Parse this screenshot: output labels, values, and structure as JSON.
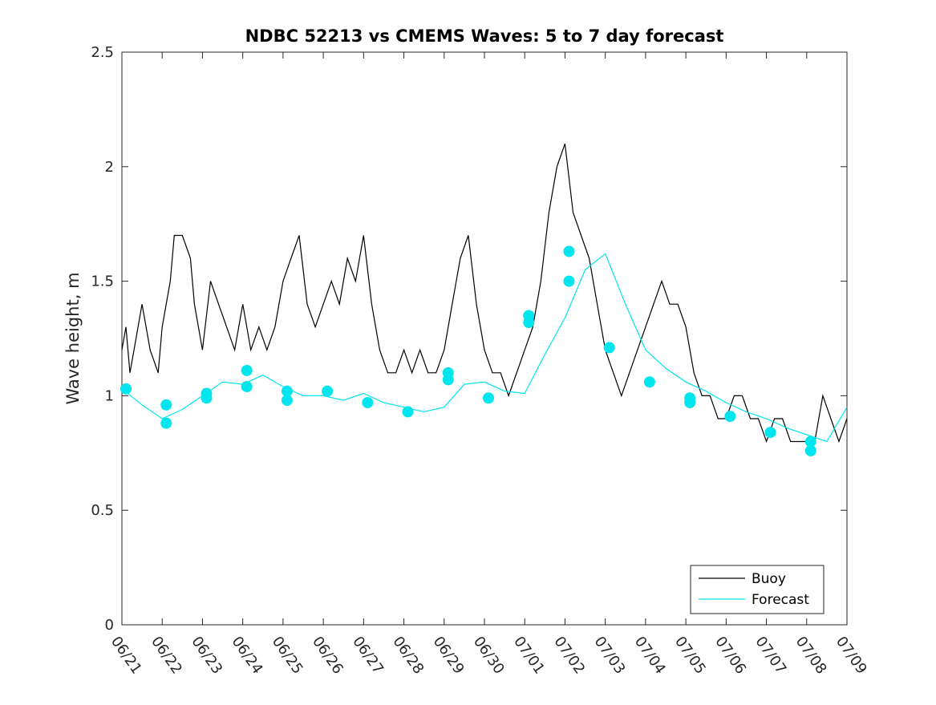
{
  "chart_data": {
    "type": "line",
    "title": "NDBC 52213 vs CMEMS Waves: 5 to 7 day forecast",
    "xlabel": "",
    "ylabel": "Wave height, m",
    "xlim": [
      "06/21",
      "07/09"
    ],
    "ylim": [
      0,
      2.5
    ],
    "y_ticks": [
      "0",
      "0.5",
      "1",
      "1.5",
      "2",
      "2.5"
    ],
    "x_ticks": [
      "06/21",
      "06/22",
      "06/23",
      "06/24",
      "06/25",
      "06/26",
      "06/27",
      "06/28",
      "06/29",
      "06/30",
      "07/01",
      "07/02",
      "07/03",
      "07/04",
      "07/05",
      "07/06",
      "07/07",
      "07/08",
      "07/09"
    ],
    "grid": false,
    "legend_position": "bottom-right",
    "colors": {
      "buoy": "#000000",
      "forecast": "#00e5ee"
    },
    "series": [
      {
        "name": "Buoy",
        "x": [
          0,
          0.1,
          0.2,
          0.3,
          0.5,
          0.7,
          0.9,
          1.0,
          1.2,
          1.3,
          1.5,
          1.7,
          1.8,
          2.0,
          2.2,
          2.4,
          2.6,
          2.8,
          3.0,
          3.2,
          3.4,
          3.6,
          3.8,
          4.0,
          4.2,
          4.4,
          4.6,
          4.8,
          5.0,
          5.2,
          5.4,
          5.6,
          5.8,
          6.0,
          6.2,
          6.4,
          6.6,
          6.8,
          7.0,
          7.2,
          7.4,
          7.6,
          7.8,
          8.0,
          8.2,
          8.4,
          8.6,
          8.8,
          9.0,
          9.2,
          9.4,
          9.6,
          9.8,
          10.0,
          10.2,
          10.4,
          10.6,
          10.8,
          11.0,
          11.2,
          11.4,
          11.6,
          11.8,
          12.0,
          12.2,
          12.4,
          12.6,
          12.8,
          13.0,
          13.2,
          13.4,
          13.6,
          13.8,
          14.0,
          14.2,
          14.4,
          14.6,
          14.8,
          15.0,
          15.2,
          15.4,
          15.6,
          15.8,
          16.0,
          16.2,
          16.4,
          16.6,
          16.8,
          17.0,
          17.2,
          17.4,
          17.6,
          17.8,
          18.0
        ],
        "y": [
          1.2,
          1.3,
          1.1,
          1.2,
          1.4,
          1.2,
          1.1,
          1.3,
          1.5,
          1.7,
          1.7,
          1.6,
          1.4,
          1.2,
          1.5,
          1.4,
          1.3,
          1.2,
          1.4,
          1.2,
          1.3,
          1.2,
          1.3,
          1.5,
          1.6,
          1.7,
          1.4,
          1.3,
          1.4,
          1.5,
          1.4,
          1.6,
          1.5,
          1.7,
          1.4,
          1.2,
          1.1,
          1.1,
          1.2,
          1.1,
          1.2,
          1.1,
          1.1,
          1.2,
          1.4,
          1.6,
          1.7,
          1.4,
          1.2,
          1.1,
          1.1,
          1.0,
          1.1,
          1.2,
          1.3,
          1.5,
          1.8,
          2.0,
          2.1,
          1.8,
          1.7,
          1.6,
          1.4,
          1.2,
          1.1,
          1.0,
          1.1,
          1.2,
          1.3,
          1.4,
          1.5,
          1.4,
          1.4,
          1.3,
          1.1,
          1.0,
          1.0,
          0.9,
          0.9,
          1.0,
          1.0,
          0.9,
          0.9,
          0.8,
          0.9,
          0.9,
          0.8,
          0.8,
          0.8,
          0.8,
          1.0,
          0.9,
          0.8,
          0.9
        ]
      },
      {
        "name": "Forecast",
        "x": [
          0,
          0.5,
          1.0,
          1.5,
          2.0,
          2.5,
          3.0,
          3.5,
          4.0,
          4.5,
          5.0,
          5.5,
          6.0,
          6.5,
          7.0,
          7.5,
          8.0,
          8.5,
          9.0,
          9.5,
          10.0,
          10.5,
          11.0,
          11.5,
          12.0,
          12.5,
          13.0,
          13.5,
          14.0,
          14.5,
          15.0,
          15.5,
          16.0,
          16.5,
          17.0,
          17.5,
          18.0
        ],
        "y": [
          1.03,
          0.96,
          0.9,
          0.94,
          1.0,
          1.06,
          1.05,
          1.09,
          1.04,
          1.0,
          1.0,
          0.98,
          1.01,
          0.97,
          0.95,
          0.93,
          0.95,
          1.05,
          1.06,
          1.02,
          1.01,
          1.18,
          1.34,
          1.55,
          1.62,
          1.4,
          1.2,
          1.12,
          1.06,
          1.02,
          0.97,
          0.93,
          0.9,
          0.86,
          0.83,
          0.8,
          0.95
        ]
      }
    ],
    "forecast_markers": {
      "x": [
        0.1,
        1.1,
        1.1,
        2.1,
        2.1,
        3.1,
        3.1,
        4.1,
        4.1,
        5.1,
        6.1,
        7.1,
        8.1,
        8.1,
        9.1,
        10.1,
        10.1,
        11.1,
        11.1,
        12.1,
        13.1,
        14.1,
        14.1,
        15.1,
        16.1,
        17.1,
        17.1
      ],
      "y": [
        1.03,
        0.96,
        0.88,
        1.01,
        0.99,
        1.11,
        1.04,
        1.02,
        0.98,
        1.02,
        0.97,
        0.93,
        1.1,
        1.07,
        0.99,
        1.35,
        1.32,
        1.63,
        1.5,
        1.21,
        1.06,
        0.99,
        0.97,
        0.91,
        0.84,
        0.8,
        0.76
      ]
    }
  }
}
